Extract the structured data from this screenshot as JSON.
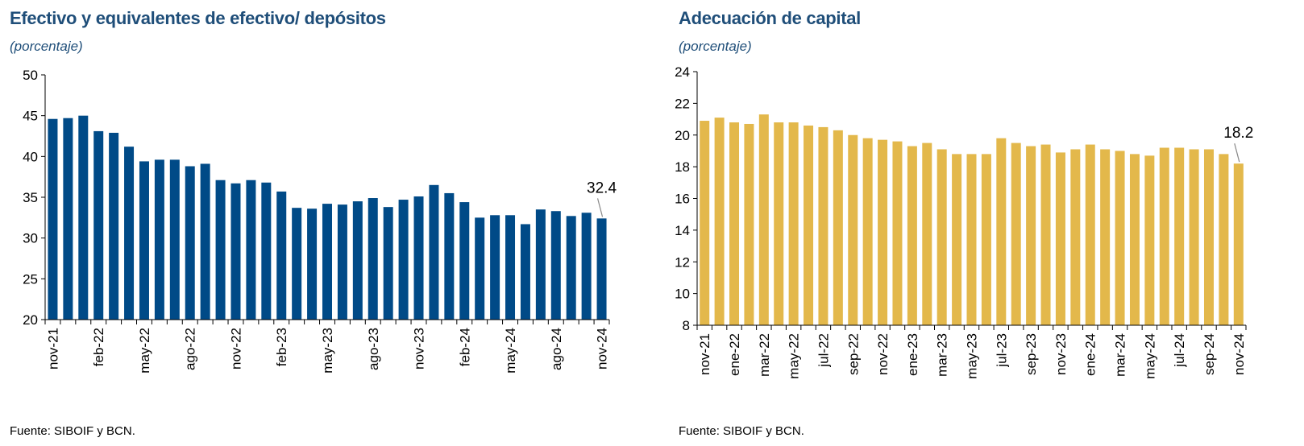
{
  "chart_data": [
    {
      "type": "bar",
      "title": "Efectivo y equivalentes de efectivo/ depósitos",
      "subtitle": "(porcentaje)",
      "source": "Fuente: SIBOIF y BCN.",
      "color": "#004A87",
      "ylim": [
        20,
        50
      ],
      "yticks": [
        20,
        25,
        30,
        35,
        40,
        45,
        50
      ],
      "tick_labels": [
        "nov-21",
        "feb-22",
        "may-22",
        "ago-22",
        "nov-22",
        "feb-23",
        "may-23",
        "ago-23",
        "nov-23",
        "feb-24",
        "may-24",
        "ago-24",
        "nov-24"
      ],
      "label_every": 3,
      "values": [
        44.6,
        44.7,
        45.0,
        43.1,
        42.9,
        41.2,
        39.4,
        39.6,
        39.6,
        38.8,
        39.1,
        37.1,
        36.7,
        37.1,
        36.8,
        35.7,
        33.7,
        33.6,
        34.2,
        34.1,
        34.5,
        34.9,
        33.8,
        34.7,
        35.1,
        36.5,
        35.5,
        34.4,
        32.5,
        32.8,
        32.8,
        31.7,
        33.5,
        33.3,
        32.7,
        33.1,
        32.4
      ],
      "last_label": "32.4",
      "grid": false,
      "xlabel": "",
      "ylabel": ""
    },
    {
      "type": "bar",
      "title": "Adecuación de capital",
      "subtitle": "(porcentaje)",
      "source": "Fuente: SIBOIF y BCN.",
      "color": "#E3B84B",
      "ylim": [
        8,
        24
      ],
      "yticks": [
        8,
        10,
        12,
        14,
        16,
        18,
        20,
        22,
        24
      ],
      "tick_labels": [
        "nov-21",
        "ene-22",
        "mar-22",
        "may-22",
        "jul-22",
        "sep-22",
        "nov-22",
        "ene-23",
        "mar-23",
        "may-23",
        "jul-23",
        "sep-23",
        "nov-23",
        "ene-24",
        "mar-24",
        "may-24",
        "jul-24",
        "sep-24",
        "nov-24"
      ],
      "label_every": 2,
      "values": [
        20.9,
        21.1,
        20.8,
        20.7,
        21.3,
        20.8,
        20.8,
        20.6,
        20.5,
        20.3,
        20.0,
        19.8,
        19.7,
        19.6,
        19.3,
        19.5,
        19.1,
        18.8,
        18.8,
        18.8,
        19.8,
        19.5,
        19.3,
        19.4,
        18.9,
        19.1,
        19.4,
        19.1,
        19.0,
        18.8,
        18.7,
        19.2,
        19.2,
        19.1,
        19.1,
        18.8,
        18.2
      ],
      "last_label": "18.2",
      "grid": false,
      "xlabel": "",
      "ylabel": ""
    }
  ]
}
